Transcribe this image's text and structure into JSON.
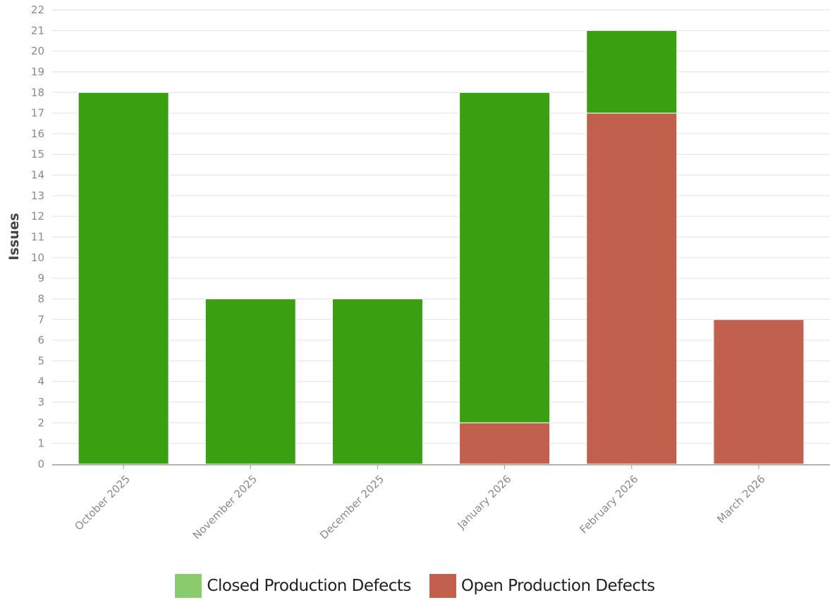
{
  "chart_data": {
    "type": "bar",
    "stacked": true,
    "title": "",
    "xlabel": "",
    "ylabel": "Issues",
    "ylim": [
      0,
      22
    ],
    "ytick_step": 1,
    "grid": true,
    "legend_placement": "bottom-center",
    "categories": [
      "October 2025",
      "November 2025",
      "December 2025",
      "January 2026",
      "February 2026",
      "March 2026"
    ],
    "series": [
      {
        "name": "Open Production Defects",
        "color": "#c0604d",
        "values": [
          0,
          0,
          0,
          2,
          17,
          7
        ]
      },
      {
        "name": "Closed Production Defects",
        "color": "#3ba011",
        "values": [
          18,
          8,
          8,
          16,
          4,
          0
        ]
      }
    ],
    "legend": [
      {
        "label": "Closed Production Defects",
        "color": "#88cc6e"
      },
      {
        "label": "Open Production Defects",
        "color": "#c0604d"
      }
    ]
  }
}
